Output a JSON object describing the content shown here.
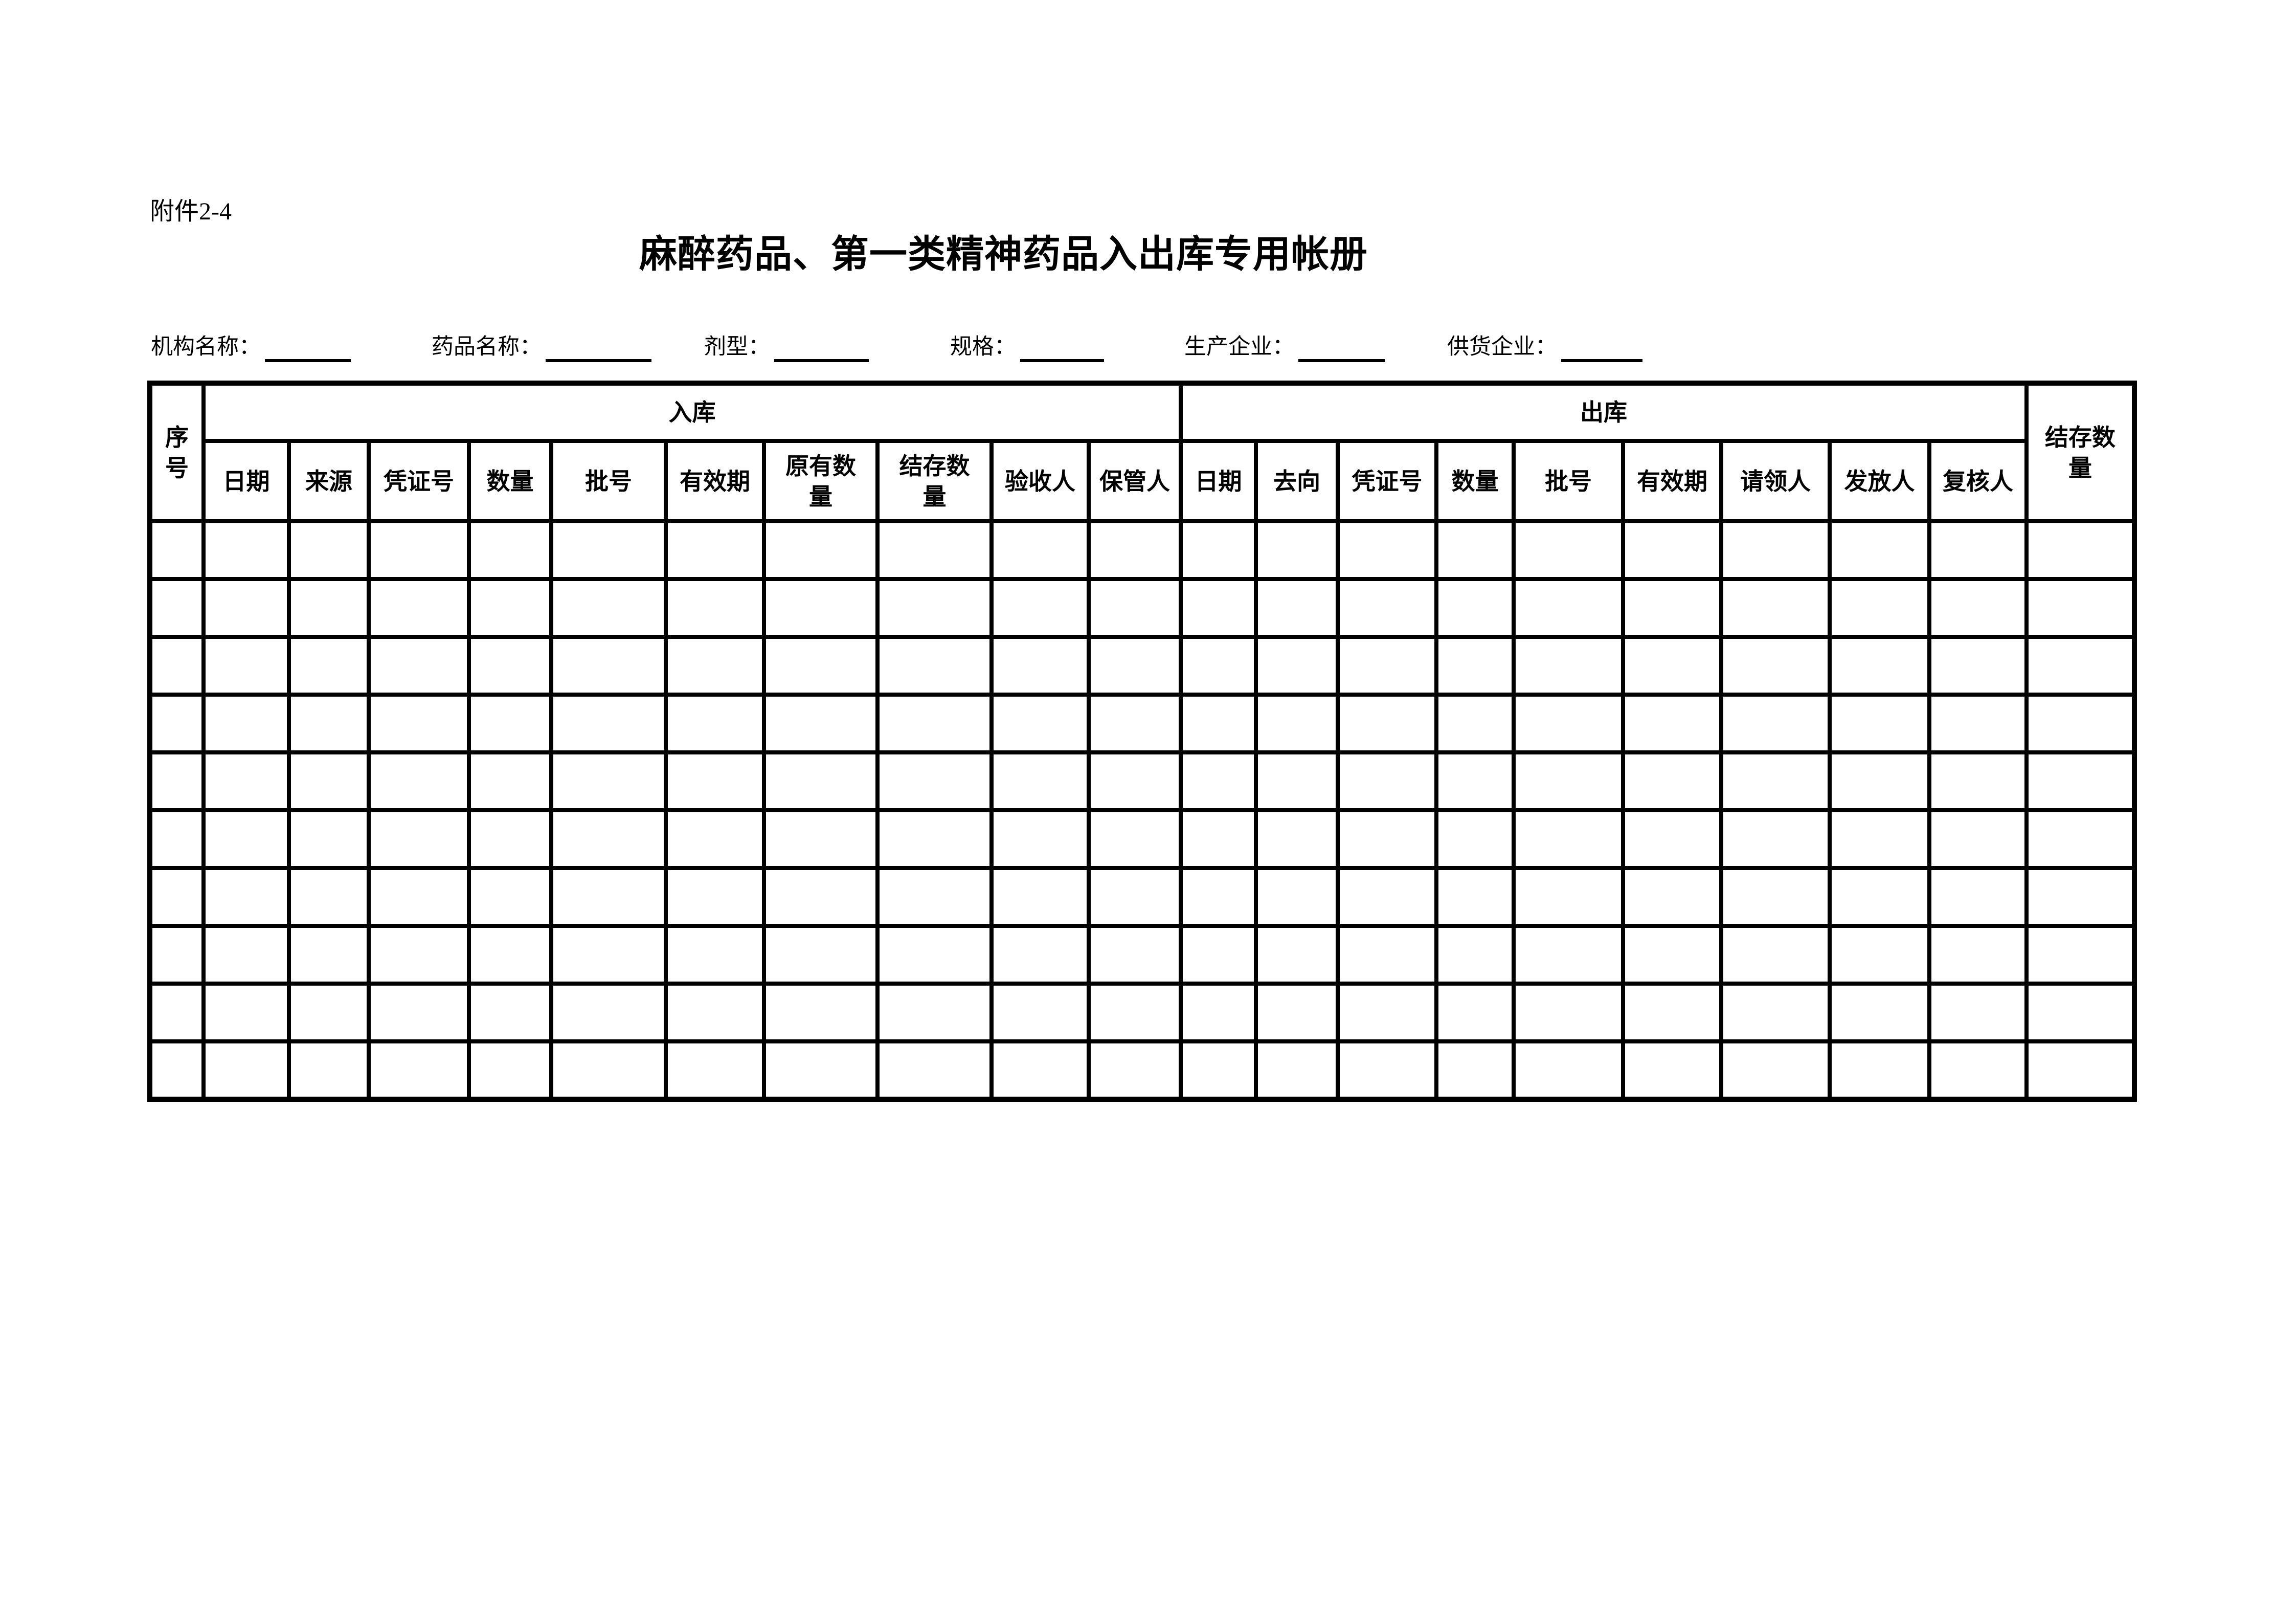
{
  "page": {
    "attachment_label": "附件2-4",
    "title": "麻醉药品、第一类精神药品入出库专用帐册"
  },
  "form": {
    "fields": [
      {
        "label": "机构名称："
      },
      {
        "label": "药品名称："
      },
      {
        "label": "剂型："
      },
      {
        "label": "规格："
      },
      {
        "label": "生产企业："
      },
      {
        "label": "供货企业："
      }
    ]
  },
  "table": {
    "seq_header": "序\n号",
    "inbound_group": "入库",
    "outbound_group": "出库",
    "balance_header": "结存数\n量",
    "inbound_columns": [
      "日期",
      "来源",
      "凭证号",
      "数量",
      "批号",
      "有效期",
      "原有数\n量",
      "结存数\n量",
      "验收人",
      "保管人"
    ],
    "outbound_columns": [
      "日期",
      "去向",
      "凭证号",
      "数量",
      "批号",
      "有效期",
      "请领人",
      "发放人",
      "复核人"
    ],
    "column_count": 21,
    "body_row_count": 10
  }
}
